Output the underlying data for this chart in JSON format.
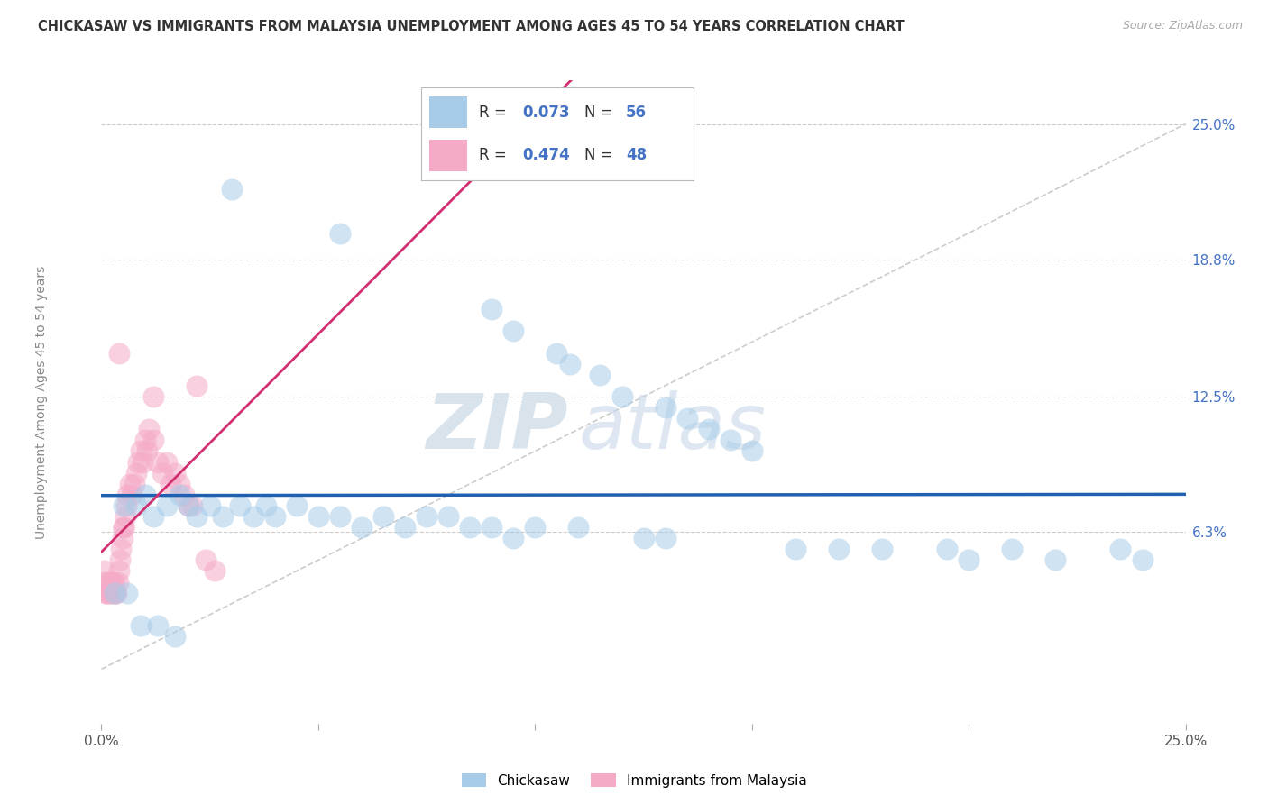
{
  "title": "CHICKASAW VS IMMIGRANTS FROM MALAYSIA UNEMPLOYMENT AMONG AGES 45 TO 54 YEARS CORRELATION CHART",
  "source": "Source: ZipAtlas.com",
  "ylabel": "Unemployment Among Ages 45 to 54 years",
  "xlim": [
    0.0,
    25.0
  ],
  "ylim": [
    -2.5,
    27.0
  ],
  "x_ticks": [
    0.0,
    5.0,
    10.0,
    15.0,
    20.0,
    25.0
  ],
  "y_ticks": [
    6.3,
    12.5,
    18.8,
    25.0
  ],
  "blue_R": 0.073,
  "blue_N": 56,
  "pink_R": 0.474,
  "pink_N": 48,
  "blue_color": "#a8cce8",
  "pink_color": "#f5aac8",
  "blue_line_color": "#2060b0",
  "pink_line_color": "#d03070",
  "ref_line_color": "#cccccc",
  "watermark_zip": "ZIP",
  "watermark_atlas": "atlas",
  "legend_label_blue": "Chickasaw",
  "legend_label_pink": "Immigrants from Malaysia",
  "blue_scatter_x": [
    3.0,
    5.5,
    9.0,
    9.5,
    10.5,
    10.8,
    11.5,
    12.0,
    13.0,
    13.5,
    14.0,
    14.5,
    15.0,
    0.5,
    0.8,
    1.0,
    1.2,
    1.5,
    1.8,
    2.0,
    2.2,
    2.5,
    2.8,
    3.2,
    3.5,
    3.8,
    4.0,
    4.5,
    5.0,
    5.5,
    6.0,
    6.5,
    7.0,
    7.5,
    8.0,
    8.5,
    9.0,
    9.5,
    10.0,
    11.0,
    12.5,
    13.0,
    16.0,
    17.0,
    18.0,
    19.5,
    20.0,
    21.0,
    22.0,
    23.5,
    24.0,
    0.3,
    0.6,
    0.9,
    1.3,
    1.7
  ],
  "blue_scatter_y": [
    22.0,
    20.0,
    16.5,
    15.5,
    14.5,
    14.0,
    13.5,
    12.5,
    12.0,
    11.5,
    11.0,
    10.5,
    10.0,
    7.5,
    7.5,
    8.0,
    7.0,
    7.5,
    8.0,
    7.5,
    7.0,
    7.5,
    7.0,
    7.5,
    7.0,
    7.5,
    7.0,
    7.5,
    7.0,
    7.0,
    6.5,
    7.0,
    6.5,
    7.0,
    7.0,
    6.5,
    6.5,
    6.0,
    6.5,
    6.5,
    6.0,
    6.0,
    5.5,
    5.5,
    5.5,
    5.5,
    5.0,
    5.5,
    5.0,
    5.5,
    5.0,
    3.5,
    3.5,
    2.0,
    2.0,
    1.5
  ],
  "pink_scatter_x": [
    0.05,
    0.08,
    0.1,
    0.12,
    0.15,
    0.18,
    0.2,
    0.22,
    0.25,
    0.28,
    0.3,
    0.32,
    0.35,
    0.38,
    0.4,
    0.42,
    0.45,
    0.48,
    0.5,
    0.52,
    0.55,
    0.58,
    0.6,
    0.65,
    0.7,
    0.75,
    0.8,
    0.85,
    0.9,
    0.95,
    1.0,
    1.05,
    1.1,
    1.2,
    1.3,
    1.4,
    1.5,
    1.6,
    1.7,
    1.8,
    1.9,
    2.0,
    2.1,
    2.2,
    2.4,
    2.6,
    0.4,
    1.2
  ],
  "pink_scatter_y": [
    4.5,
    4.0,
    3.5,
    3.5,
    4.0,
    3.5,
    4.0,
    3.5,
    4.0,
    3.5,
    4.0,
    3.5,
    3.5,
    4.0,
    4.5,
    5.0,
    5.5,
    6.0,
    6.5,
    6.5,
    7.0,
    7.5,
    8.0,
    8.5,
    8.0,
    8.5,
    9.0,
    9.5,
    10.0,
    9.5,
    10.5,
    10.0,
    11.0,
    10.5,
    9.5,
    9.0,
    9.5,
    8.5,
    9.0,
    8.5,
    8.0,
    7.5,
    7.5,
    13.0,
    5.0,
    4.5,
    14.5,
    12.5
  ]
}
